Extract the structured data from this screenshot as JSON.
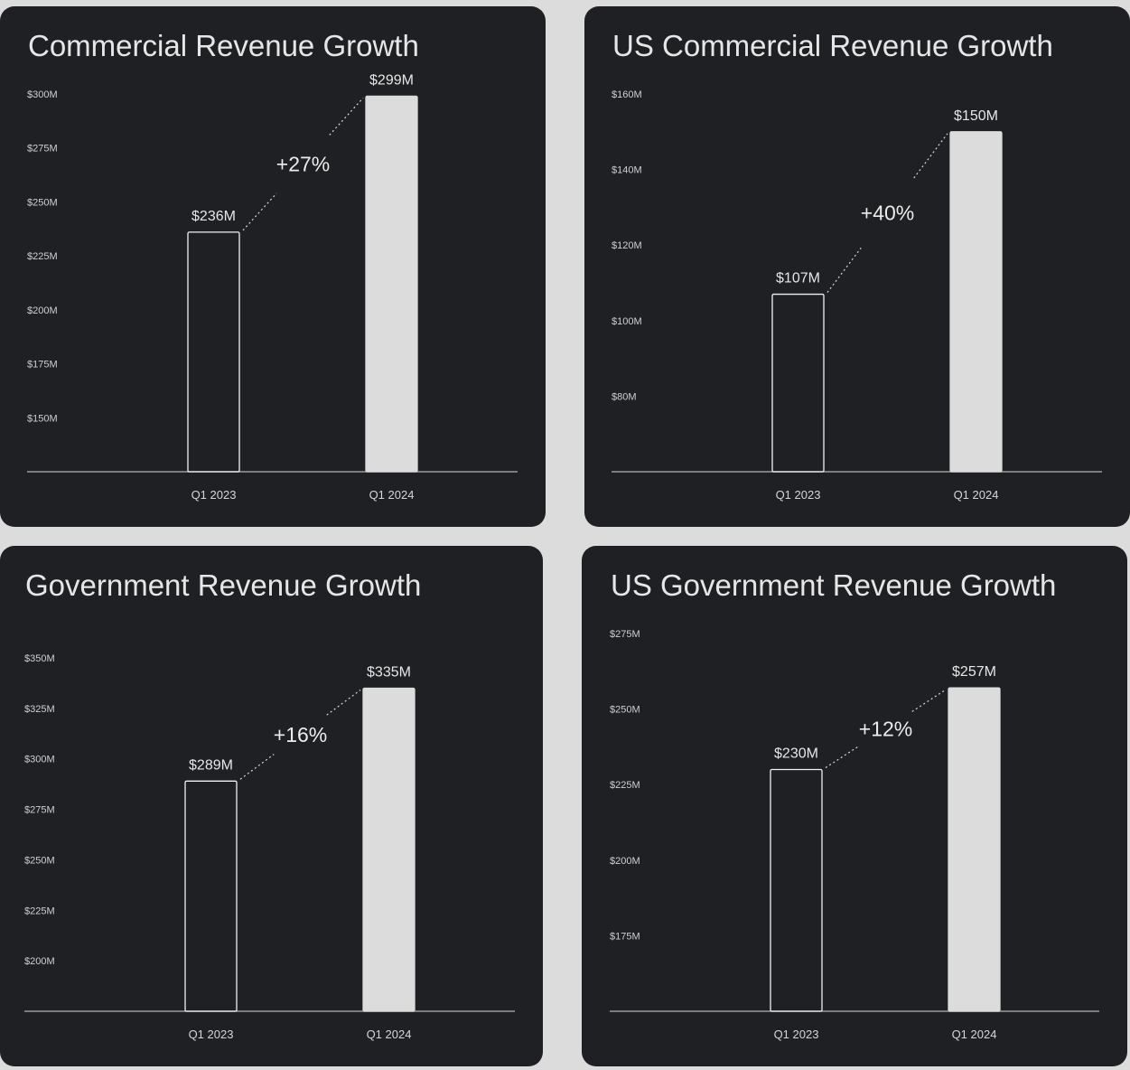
{
  "chart_data": [
    {
      "type": "bar",
      "title": "Commercial Revenue Growth",
      "categories": [
        "Q1 2023",
        "Q1 2024"
      ],
      "values": [
        236,
        299
      ],
      "value_labels": [
        "$236M",
        "$299M"
      ],
      "growth_label": "+27%",
      "yticks": [
        150,
        175,
        200,
        225,
        250,
        275,
        300
      ],
      "ytick_labels": [
        "$150M",
        "$175M",
        "$200M",
        "$225M",
        "$250M",
        "$275M",
        "$300M"
      ],
      "ylim": [
        125,
        300
      ],
      "xlabel": "",
      "ylabel": "",
      "grid": false,
      "bar_styles": [
        "outline",
        "filled"
      ]
    },
    {
      "type": "bar",
      "title": "US Commercial Revenue Growth",
      "categories": [
        "Q1 2023",
        "Q1 2024"
      ],
      "values": [
        107,
        150
      ],
      "value_labels": [
        "$107M",
        "$150M"
      ],
      "growth_label": "+40%",
      "yticks": [
        80,
        100,
        120,
        140,
        160
      ],
      "ytick_labels": [
        "$80M",
        "$100M",
        "$120M",
        "$140M",
        "$160M"
      ],
      "ylim": [
        60,
        160
      ],
      "xlabel": "",
      "ylabel": "",
      "grid": false,
      "bar_styles": [
        "outline",
        "filled"
      ]
    },
    {
      "type": "bar",
      "title": "Government Revenue Growth",
      "categories": [
        "Q1 2023",
        "Q1 2024"
      ],
      "values": [
        289,
        335
      ],
      "value_labels": [
        "$289M",
        "$335M"
      ],
      "growth_label": "+16%",
      "yticks": [
        200,
        225,
        250,
        275,
        300,
        325,
        350
      ],
      "ytick_labels": [
        "$200M",
        "$225M",
        "$250M",
        "$275M",
        "$300M",
        "$325M",
        "$350M"
      ],
      "ylim": [
        175,
        350
      ],
      "xlabel": "",
      "ylabel": "",
      "grid": false,
      "bar_styles": [
        "outline",
        "filled"
      ]
    },
    {
      "type": "bar",
      "title": "US Government Revenue Growth",
      "categories": [
        "Q1 2023",
        "Q1 2024"
      ],
      "values": [
        230,
        257
      ],
      "value_labels": [
        "$230M",
        "$257M"
      ],
      "growth_label": "+12%",
      "yticks": [
        175,
        200,
        225,
        250,
        275
      ],
      "ytick_labels": [
        "$175M",
        "$200M",
        "$225M",
        "$250M",
        "$275M"
      ],
      "ylim": [
        150,
        275
      ],
      "xlabel": "",
      "ylabel": "",
      "grid": false,
      "bar_styles": [
        "outline",
        "filled"
      ]
    }
  ],
  "colors": {
    "page_background": "#dcdcdc",
    "panel_background": "#1f2024",
    "bar_fill": "#dcdcdc",
    "bar_outline": "#f2f2f2",
    "text": "#e6e6e6"
  }
}
